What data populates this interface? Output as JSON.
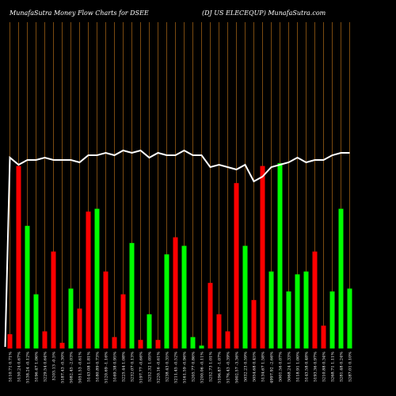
{
  "header": {
    "left": "MunafaSutra  Money Flow  Charts for DSEE",
    "right": "(DJ US ELECEQUP) MunafaSutra.com"
  },
  "colors": {
    "background": "#000000",
    "grid": "#7a4a10",
    "up": "#00ff00",
    "down": "#ff0000",
    "line": "#ffffff"
  },
  "chart_data": {
    "type": "bar",
    "series": [
      {
        "values": [
          5,
          64,
          43,
          19,
          6,
          34,
          2,
          21,
          14,
          48,
          49,
          27,
          4,
          19,
          37,
          3,
          12,
          3,
          33,
          39,
          36,
          4,
          1,
          23,
          12,
          6,
          58,
          36,
          17,
          64,
          27,
          65,
          20,
          26,
          27,
          34,
          8,
          20,
          49,
          21
        ],
        "directions": [
          "down",
          "down",
          "up",
          "up",
          "down",
          "down",
          "down",
          "up",
          "down",
          "down",
          "up",
          "down",
          "down",
          "down",
          "up",
          "down",
          "up",
          "down",
          "up",
          "down",
          "up",
          "up",
          "up",
          "down",
          "down",
          "down",
          "down",
          "up",
          "down",
          "down",
          "up",
          "up",
          "up",
          "up",
          "up",
          "down",
          "down",
          "up",
          "up",
          "up"
        ]
      },
      {
        "values": [
          71,
          68,
          70,
          70,
          71,
          70,
          70,
          70,
          69,
          72,
          72,
          73,
          72,
          74,
          73,
          74,
          71,
          73,
          72,
          72,
          74,
          72,
          72,
          67,
          68,
          67,
          66,
          68,
          61,
          63,
          67,
          68,
          69,
          71,
          69,
          70,
          70,
          72,
          73,
          73
        ]
      }
    ],
    "x_labels": [
      "5110.71 0.71%",
      "5150.24 0.67%",
      "5138.24 -0.12%",
      "5196.47 1.06%",
      "5229.54 0.64%",
      "5203.13 -0.5%",
      "5187.43 -0.30%",
      "5082.45 -2.03%",
      "5051.53 -0.61%",
      "5143.08 1.81%",
      "5180.89 0.73%",
      "5120.69 -1.16%",
      "5169.38 0.95%",
      "5225.44 1.08%",
      "5232.07 0.13%",
      "5197.77 -0.66%",
      "5252.32 1.05%",
      "5220.16 -0.61%",
      "5238.43 0.35%",
      "5211.45 -0.52%",
      "5161.59 -0.96%",
      "5205.77 0.86%",
      "5200.06 -0.11%",
      "5252.73 1.01%",
      "5196.87 -1.07%",
      "5176.43 -0.39%",
      "5002.57 -3.36%",
      "5032.23 0.59%",
      "5054.68 0.45%",
      "5134.67 1.58%",
      "4997.92 -2.66%",
      "5001.56 0.07%",
      "5068.24 1.33%",
      "5118.91 1.00%",
      "5143.58 0.48%",
      "5193.36 0.97%",
      "5210.88 0.34%",
      "5268.71 1.11%",
      "5281.48 0.24%",
      "5287.01 0.10%"
    ]
  }
}
